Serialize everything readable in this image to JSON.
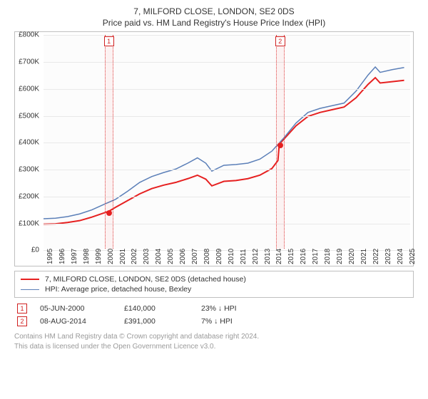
{
  "title": {
    "line1": "7, MILFORD CLOSE, LONDON, SE2 0DS",
    "line2": "Price paid vs. HM Land Registry's House Price Index (HPI)"
  },
  "chart": {
    "type": "line",
    "background_color": "#fcfcfc",
    "border_color": "#bfbfbf",
    "grid_color": "#e9e9e9",
    "label_fontsize": 10,
    "ylim": [
      0,
      800000
    ],
    "ytick_step": 100000,
    "yticks": [
      "£0",
      "£100K",
      "£200K",
      "£300K",
      "£400K",
      "£500K",
      "£600K",
      "£700K",
      "£800K"
    ],
    "xlim": [
      1995,
      2025.5
    ],
    "xticks": [
      1995,
      1996,
      1997,
      1998,
      1999,
      2000,
      2001,
      2002,
      2003,
      2004,
      2005,
      2006,
      2007,
      2008,
      2009,
      2010,
      2011,
      2012,
      2013,
      2014,
      2015,
      2016,
      2017,
      2018,
      2019,
      2020,
      2021,
      2022,
      2023,
      2024,
      2025
    ],
    "series": [
      {
        "name": "subject",
        "label": "7, MILFORD CLOSE, LONDON, SE2 0DS (detached house)",
        "color": "#e62020",
        "line_width": 2,
        "points": [
          [
            1995.0,
            92000
          ],
          [
            1996.0,
            93000
          ],
          [
            1997.0,
            98000
          ],
          [
            1998.0,
            105000
          ],
          [
            1999.0,
            118000
          ],
          [
            2000.42,
            140000
          ],
          [
            2001.0,
            155000
          ],
          [
            2002.0,
            180000
          ],
          [
            2003.0,
            205000
          ],
          [
            2004.0,
            225000
          ],
          [
            2005.0,
            238000
          ],
          [
            2006.0,
            248000
          ],
          [
            2007.0,
            262000
          ],
          [
            2007.8,
            275000
          ],
          [
            2008.5,
            260000
          ],
          [
            2009.0,
            235000
          ],
          [
            2010.0,
            252000
          ],
          [
            2011.0,
            255000
          ],
          [
            2012.0,
            262000
          ],
          [
            2013.0,
            275000
          ],
          [
            2014.0,
            300000
          ],
          [
            2014.5,
            330000
          ],
          [
            2014.61,
            391000
          ],
          [
            2015.0,
            410000
          ],
          [
            2016.0,
            460000
          ],
          [
            2017.0,
            495000
          ],
          [
            2018.0,
            510000
          ],
          [
            2019.0,
            520000
          ],
          [
            2020.0,
            530000
          ],
          [
            2021.0,
            565000
          ],
          [
            2022.0,
            615000
          ],
          [
            2022.6,
            640000
          ],
          [
            2023.0,
            620000
          ],
          [
            2024.0,
            625000
          ],
          [
            2025.0,
            630000
          ]
        ]
      },
      {
        "name": "hpi",
        "label": "HPI: Average price, detached house, Bexley",
        "color": "#5b7fb8",
        "line_width": 1.5,
        "points": [
          [
            1995.0,
            112000
          ],
          [
            1996.0,
            114000
          ],
          [
            1997.0,
            120000
          ],
          [
            1998.0,
            130000
          ],
          [
            1999.0,
            145000
          ],
          [
            2000.0,
            165000
          ],
          [
            2001.0,
            185000
          ],
          [
            2002.0,
            215000
          ],
          [
            2003.0,
            248000
          ],
          [
            2004.0,
            270000
          ],
          [
            2005.0,
            285000
          ],
          [
            2006.0,
            298000
          ],
          [
            2007.0,
            320000
          ],
          [
            2007.8,
            340000
          ],
          [
            2008.5,
            320000
          ],
          [
            2009.0,
            290000
          ],
          [
            2010.0,
            312000
          ],
          [
            2011.0,
            315000
          ],
          [
            2012.0,
            320000
          ],
          [
            2013.0,
            335000
          ],
          [
            2014.0,
            365000
          ],
          [
            2015.0,
            415000
          ],
          [
            2016.0,
            470000
          ],
          [
            2017.0,
            510000
          ],
          [
            2018.0,
            525000
          ],
          [
            2019.0,
            535000
          ],
          [
            2020.0,
            545000
          ],
          [
            2021.0,
            590000
          ],
          [
            2022.0,
            650000
          ],
          [
            2022.6,
            680000
          ],
          [
            2023.0,
            660000
          ],
          [
            2024.0,
            670000
          ],
          [
            2025.0,
            678000
          ]
        ]
      }
    ],
    "sale_bands": [
      {
        "flag": "1",
        "x": 2000.42,
        "band_half_width_years": 0.35
      },
      {
        "flag": "2",
        "x": 2014.61,
        "band_half_width_years": 0.35
      }
    ],
    "sale_markers": [
      {
        "x": 2000.42,
        "y": 140000
      },
      {
        "x": 2014.61,
        "y": 391000
      }
    ]
  },
  "legend": {
    "items": [
      {
        "color": "#e62020",
        "width": 2,
        "label_path": "chart.series.0.label"
      },
      {
        "color": "#5b7fb8",
        "width": 1.5,
        "label_path": "chart.series.1.label"
      }
    ]
  },
  "sales": [
    {
      "flag": "1",
      "date": "05-JUN-2000",
      "price": "£140,000",
      "delta": "23% ↓ HPI"
    },
    {
      "flag": "2",
      "date": "08-AUG-2014",
      "price": "£391,000",
      "delta": "7% ↓ HPI"
    }
  ],
  "footer": {
    "line1": "Contains HM Land Registry data © Crown copyright and database right 2024.",
    "line2": "This data is licensed under the Open Government Licence v3.0."
  }
}
